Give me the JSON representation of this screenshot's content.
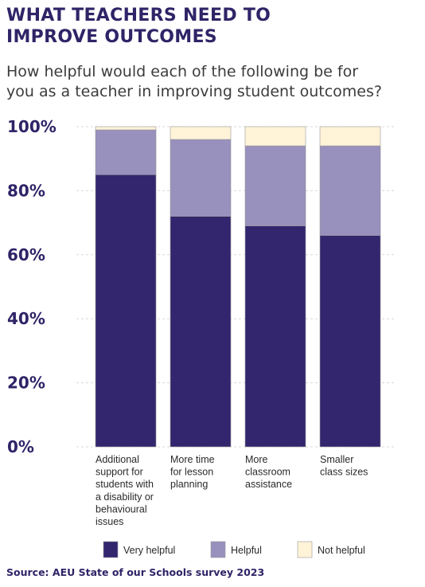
{
  "title_lines": [
    "WHAT TEACHERS NEED TO",
    "IMPROVE OUTCOMES"
  ],
  "subtitle_lines": [
    "How helpful would each of the following be for",
    "you as a teacher in improving student outcomes?"
  ],
  "source": "Source: AEU State of our Schools survey 2023",
  "colors": {
    "very_helpful": "#33266e",
    "helpful": "#9890bd",
    "not_helpful": "#fff3d8",
    "axis_text": "#2f2467",
    "grid": "#d9d9d9",
    "bar_outline": "#9a9a9a"
  },
  "chart_data": {
    "type": "bar",
    "stacked": true,
    "categories": [
      [
        "Additional",
        "support for",
        "students with",
        "a disability or",
        "behavioural",
        "issues"
      ],
      [
        "More time",
        "for lesson",
        "planning"
      ],
      [
        "More",
        "classroom",
        "assistance"
      ],
      [
        "Smaller",
        "class sizes"
      ]
    ],
    "series": [
      {
        "name": "Very helpful",
        "values": [
          85,
          72,
          69,
          66
        ],
        "color": "#33266e"
      },
      {
        "name": "Helpful",
        "values": [
          14,
          24,
          25,
          28
        ],
        "color": "#9890bd"
      },
      {
        "name": "Not helpful",
        "values": [
          1,
          4,
          6,
          6
        ],
        "color": "#fff3d8"
      }
    ],
    "ylim": [
      0,
      100
    ],
    "yticks": [
      "0%",
      "20%",
      "40%",
      "60%",
      "80%",
      "100%"
    ],
    "grid": true,
    "legend_position": "bottom"
  }
}
